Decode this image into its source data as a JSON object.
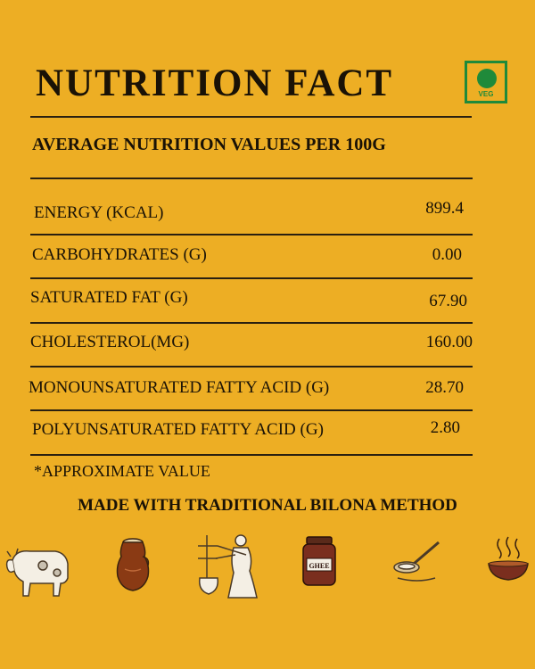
{
  "header": {
    "title": "NUTRITION FACT",
    "subtitle": "AVERAGE NUTRITION VALUES PER 100G",
    "veg_badge": "VEG",
    "veg_color": "#1f8a3a",
    "background": "#EDAE24"
  },
  "rows": [
    {
      "label": "ENERGY (KCAL)",
      "value": "899.4"
    },
    {
      "label": "CARBOHYDRATES (G)",
      "value": "0.00"
    },
    {
      "label": "SATURATED FAT (G)",
      "value": "67.90"
    },
    {
      "label": "CHOLESTEROL(MG)",
      "value": "160.00"
    },
    {
      "label": "MONOUNSATURATED FATTY ACID (G)",
      "value": "28.70"
    },
    {
      "label": "POLYUNSATURATED FATTY ACID (G)",
      "value": "2.80"
    }
  ],
  "footnote": "*APPROXIMATE VALUE",
  "tagline": "MADE WITH TRADITIONAL BILONA METHOD",
  "process_icons": [
    {
      "icon": "cow-icon"
    },
    {
      "icon": "clay-pot-icon"
    },
    {
      "icon": "churning-woman-icon"
    },
    {
      "icon": "ghee-jar-icon",
      "label": "GHEE"
    },
    {
      "icon": "strainer-ladle-icon"
    },
    {
      "icon": "steaming-bowl-icon"
    }
  ]
}
